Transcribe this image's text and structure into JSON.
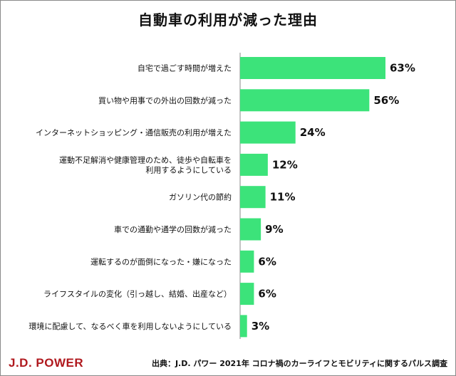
{
  "header": {
    "title": "自動車の利用が減った理由"
  },
  "footer": {
    "brand": "J.D. POWER",
    "source": "出典：J.D. パワー 2021年 コロナ禍のカーライフとモビリティに関するパルス調査"
  },
  "colors": {
    "bar": "#3ce37a",
    "axis": "#888888"
  },
  "chart_data": {
    "type": "bar",
    "orientation": "horizontal",
    "categories": [
      [
        "自宅で過ごす時間が増えた"
      ],
      [
        "買い物や用事での外出の回数が減った"
      ],
      [
        "インターネットショッピング・通信販売の利用が増えた"
      ],
      [
        "運動不足解消や健康管理のため、徒歩や自転車を",
        "利用するようにしている"
      ],
      [
        "ガソリン代の節約"
      ],
      [
        "車での通勤や通学の回数が減った"
      ],
      [
        "運転するのが面倒になった・嫌になった"
      ],
      [
        "ライフスタイルの変化（引っ越し、結婚、出産など）"
      ],
      [
        "環境に配慮して、なるべく車を利用しないようにしている"
      ]
    ],
    "values": [
      63,
      56,
      24,
      12,
      11,
      9,
      6,
      6,
      3
    ],
    "value_labels": [
      "63%",
      "56%",
      "24%",
      "12%",
      "11%",
      "9%",
      "6%",
      "6%",
      "3%"
    ],
    "title": "自動車の利用が減った理由",
    "xlim": [
      0,
      63
    ],
    "grid": false,
    "legend": "none"
  }
}
